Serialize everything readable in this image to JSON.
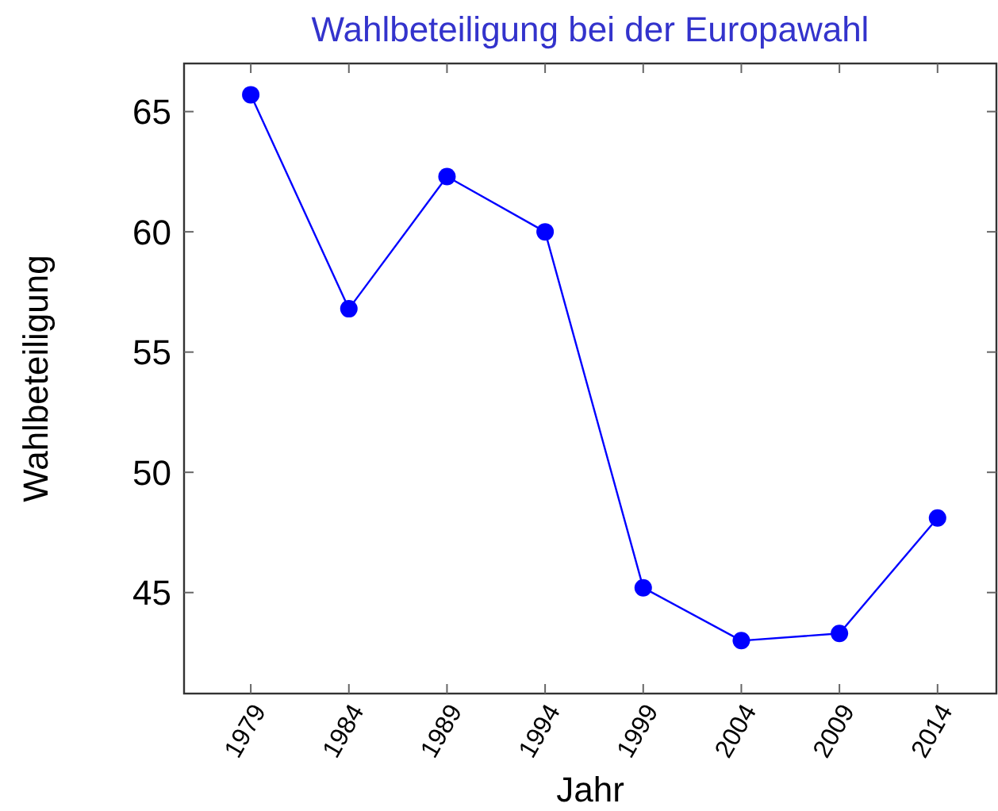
{
  "chart_data": {
    "type": "line",
    "title": "Wahlbeteiligung bei der Europawahl",
    "xlabel": "Jahr",
    "ylabel": "Wahlbeteiligung",
    "x": [
      1979,
      1984,
      1989,
      1994,
      1999,
      2004,
      2009,
      2014
    ],
    "series": [
      {
        "color": "#0000ff",
        "values": [
          65.7,
          56.8,
          62.3,
          60.0,
          45.2,
          43.0,
          43.3,
          48.1
        ]
      }
    ],
    "xlim": [
      1975.6,
      2017
    ],
    "xticks": [
      1979,
      1984,
      1989,
      1994,
      1999,
      2004,
      2009,
      2014
    ],
    "ylim": [
      40.8,
      67
    ],
    "yticks": [
      45,
      50,
      55,
      60,
      65
    ],
    "grid": false,
    "marker": "circle",
    "line_style": "solid"
  }
}
